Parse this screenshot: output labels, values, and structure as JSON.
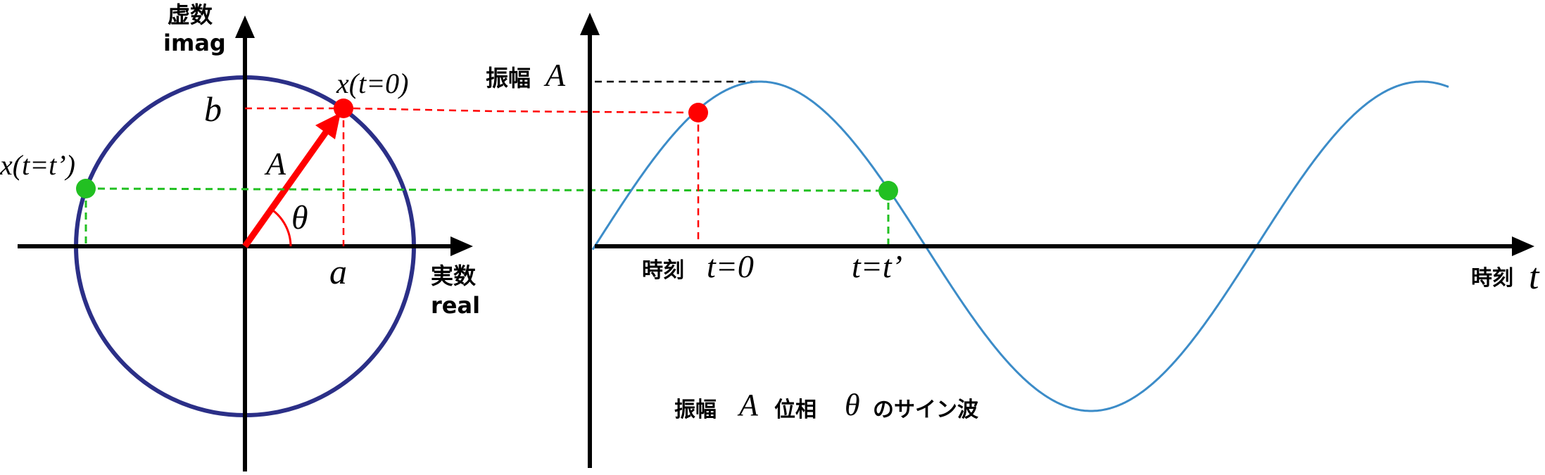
{
  "colors": {
    "axis": "#000000",
    "circle": "#2B2F87",
    "vector": "#FF0000",
    "point_t0": "#FF0000",
    "point_tprime": "#22C022",
    "wave": "#3C8CC8",
    "guide_red": "#FF0000",
    "guide_green": "#22C022",
    "guide_black": "#000000"
  },
  "phasor": {
    "imag_label_jp": "虚数",
    "imag_label_en": "imag",
    "real_label_jp": "実数",
    "real_label_en": "real",
    "label_b": "b",
    "label_a": "a",
    "label_A": "A",
    "label_theta": "θ",
    "label_x_t0": "x(t=0)",
    "label_x_tprime": "x(t=t’)"
  },
  "wave_plot": {
    "amplitude_label_jp": "振幅",
    "amplitude_label_sym": "A",
    "t0_label_jp": "時刻",
    "t0_label": "t=0",
    "tprime_label": "t=t’",
    "time_axis_label_jp": "時刻",
    "time_axis_label_sym": "t"
  },
  "caption": {
    "part1_jp": "振幅",
    "part2_sym": "A",
    "part3_jp": "位相",
    "part4_sym": "θ",
    "part5_jp": "のサイン波"
  }
}
